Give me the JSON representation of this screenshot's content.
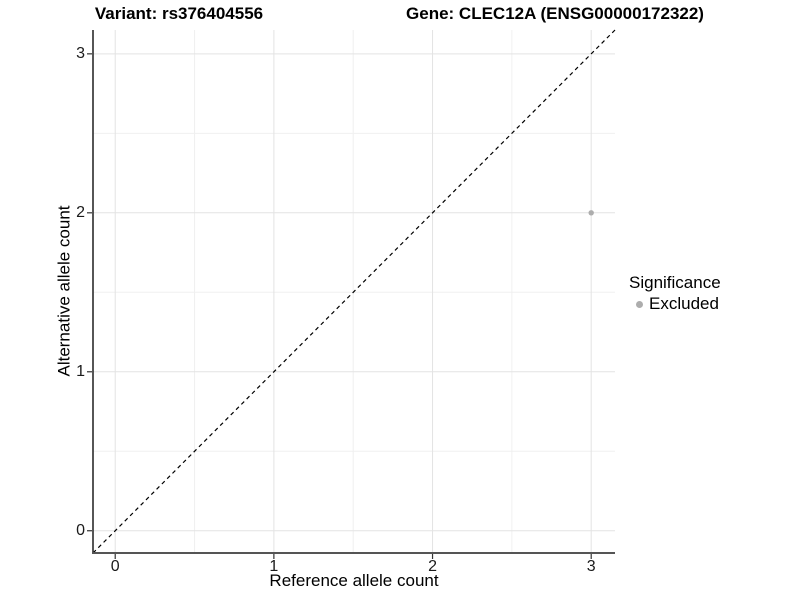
{
  "header": {
    "variant_title": "Variant: rs376404556",
    "gene_title": "Gene: CLEC12A (ENSG00000172322)"
  },
  "legend": {
    "title": "Significance",
    "items": [
      {
        "label": "Excluded",
        "color": "#adadad"
      }
    ]
  },
  "chart_data": {
    "type": "scatter",
    "titles": [
      "Variant: rs376404556",
      "Gene: CLEC12A (ENSG00000172322)"
    ],
    "xlabel": "Reference allele count",
    "ylabel": "Alternative allele count",
    "xlim": [
      -0.14,
      3.15
    ],
    "ylim": [
      -0.14,
      3.15
    ],
    "x_ticks": [
      0,
      1,
      2,
      3
    ],
    "y_ticks": [
      0,
      1,
      2,
      3
    ],
    "minor_x_ticks": [
      0.5,
      1.5,
      2.5
    ],
    "minor_y_ticks": [
      0.5,
      1.5,
      2.5
    ],
    "grid": true,
    "legend_position": "right",
    "legend_title": "Significance",
    "series": [
      {
        "name": "Excluded",
        "color": "#adadad",
        "points": [
          [
            3,
            2
          ]
        ]
      }
    ],
    "reference_line": {
      "slope": 1,
      "intercept": 0,
      "style": "dashed",
      "color": "#000000"
    }
  },
  "colors": {
    "background": "#ffffff",
    "grid_major": "#e3e3e3",
    "grid_minor": "#f0f0f0",
    "axis_line_left": "#1f1f1f",
    "axis_line_bottom": "#555555",
    "tick_mark": "#333333",
    "point": "#adadad"
  }
}
